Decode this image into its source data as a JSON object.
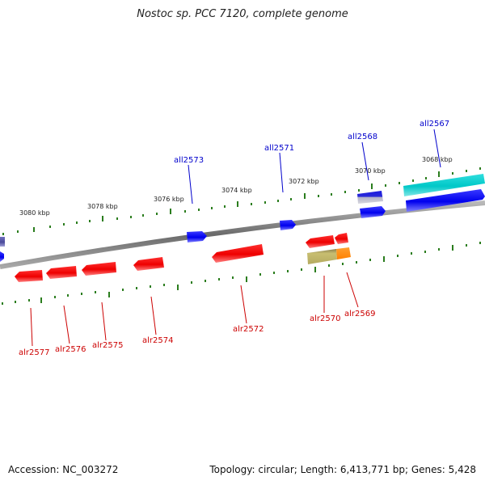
{
  "title": "Nostoc sp. PCC 7120, complete genome",
  "footer": {
    "accession": "Accession: NC_003272",
    "summary": "Topology: circular; Length: 6,413,771 bp; Genes: 5,428"
  },
  "colors": {
    "backbone": "#7a7a7a",
    "tick": "#2b7d1e",
    "plus_label": "#0000cc",
    "minus_label": "#cc0000",
    "gene_blue": "#0000ee",
    "gene_red": "#ee0000",
    "gene_cyan": "#00c8c8",
    "gene_purple": "#5a5aa8",
    "gene_olive": "#b4aa60",
    "gene_orange": "#ff8c00"
  },
  "scale": {
    "labels": [
      "3080 kbp",
      "3078 kbp",
      "3076 kbp",
      "3074 kbp",
      "3072 kbp",
      "3070 kbp",
      "3068 kbp"
    ]
  },
  "genes": {
    "plus": [
      {
        "label": "all2573",
        "color": "blue"
      },
      {
        "label": "all2571",
        "color": "blue"
      },
      {
        "label": "all2568",
        "color": "blue"
      },
      {
        "label": "all2567",
        "color": "cyan"
      }
    ],
    "minus": [
      {
        "label": "alr2577",
        "color": "red"
      },
      {
        "label": "alr2576",
        "color": "red"
      },
      {
        "label": "alr2575",
        "color": "red"
      },
      {
        "label": "alr2574",
        "color": "red"
      },
      {
        "label": "alr2572",
        "color": "red"
      },
      {
        "label": "alr2570",
        "color": "red"
      },
      {
        "label": "alr2569",
        "color": "red"
      }
    ]
  }
}
